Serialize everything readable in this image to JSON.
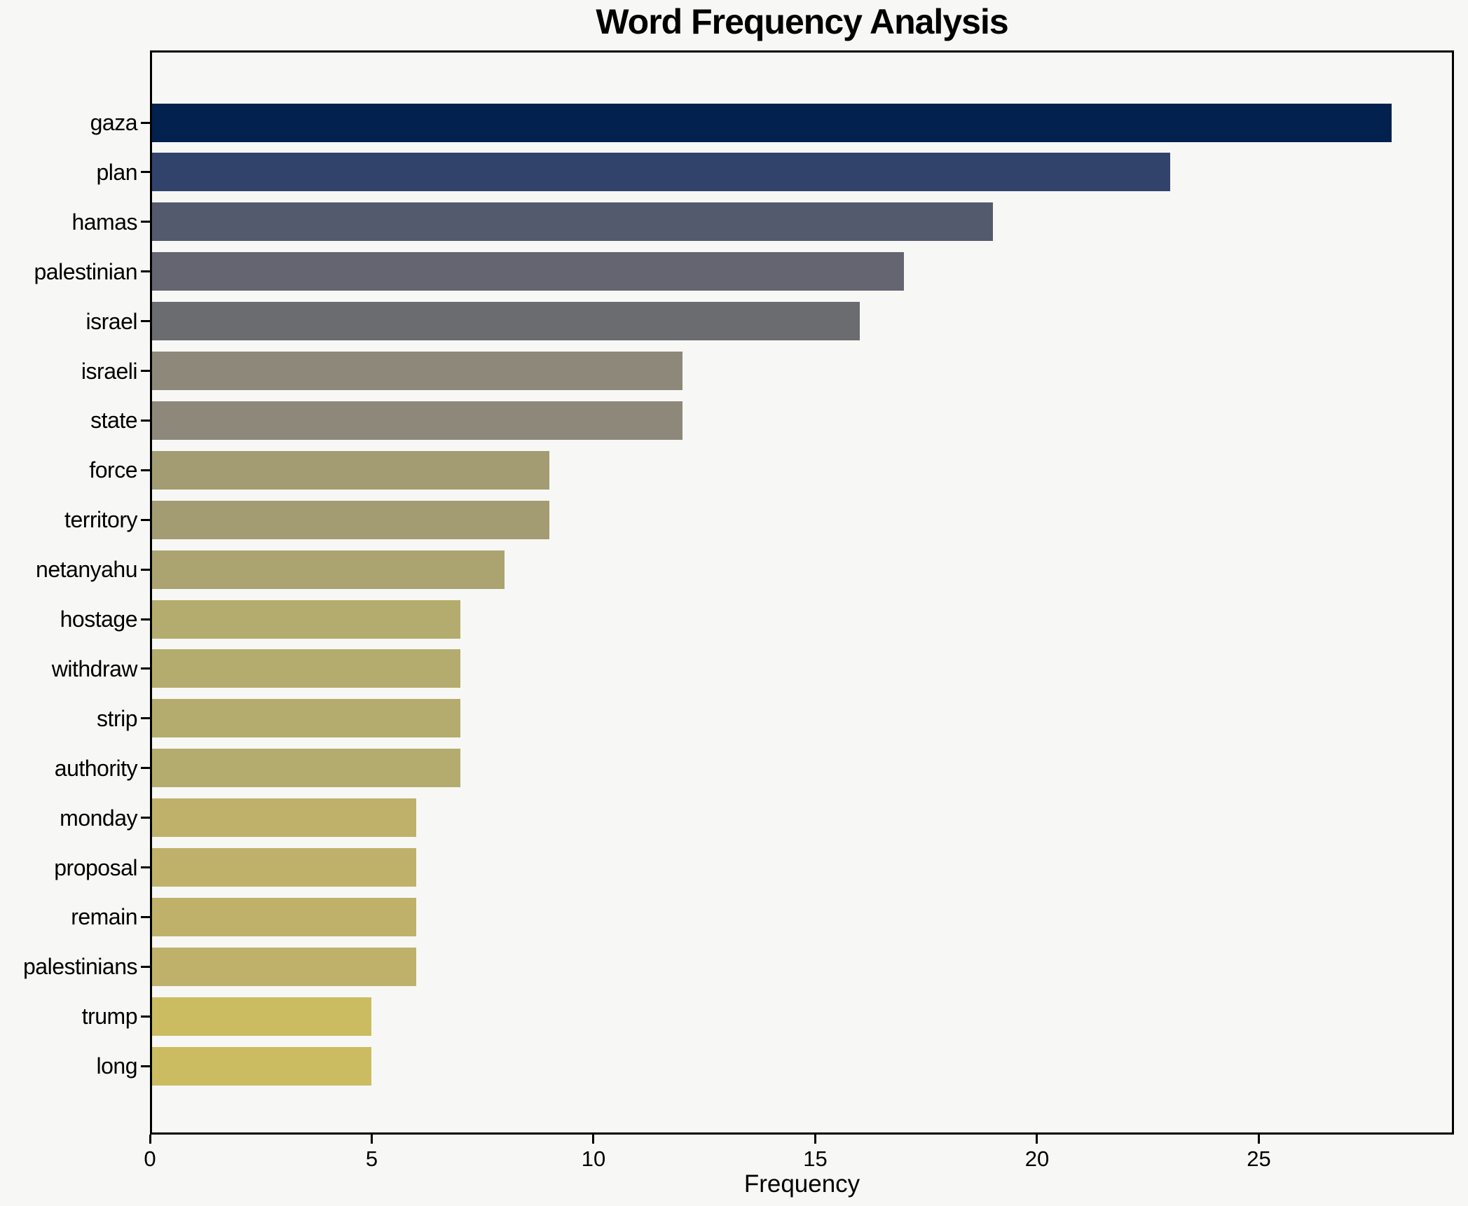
{
  "chart_data": {
    "type": "bar",
    "orientation": "horizontal",
    "title": "Word Frequency Analysis",
    "xlabel": "Frequency",
    "ylabel": "",
    "categories": [
      "gaza",
      "plan",
      "hamas",
      "palestinian",
      "israel",
      "israeli",
      "state",
      "force",
      "territory",
      "netanyahu",
      "hostage",
      "withdraw",
      "strip",
      "authority",
      "monday",
      "proposal",
      "remain",
      "palestinians",
      "trump",
      "long"
    ],
    "values": [
      28,
      23,
      19,
      17,
      16,
      12,
      12,
      9,
      9,
      8,
      7,
      7,
      7,
      7,
      6,
      6,
      6,
      6,
      5,
      5
    ],
    "bar_colors": [
      "#03214E",
      "#32436B",
      "#545A6E",
      "#646571",
      "#6B6C6F",
      "#8D8879",
      "#8D8879",
      "#A39C73",
      "#A39C73",
      "#ABA471",
      "#B4AC6E",
      "#B4AC6E",
      "#B4AC6E",
      "#B4AC6E",
      "#BFB16A",
      "#BFB16A",
      "#BFB16A",
      "#BFB16A",
      "#CCBC61",
      "#CCBC61"
    ],
    "x_ticks": [
      0,
      5,
      10,
      15,
      20,
      25
    ],
    "xlim": [
      0,
      29.4
    ],
    "grid": false,
    "legend": false,
    "colormap": "cividis",
    "background_color": "#f7f7f5",
    "frame_color": "#000000",
    "text_color": "#000000"
  }
}
